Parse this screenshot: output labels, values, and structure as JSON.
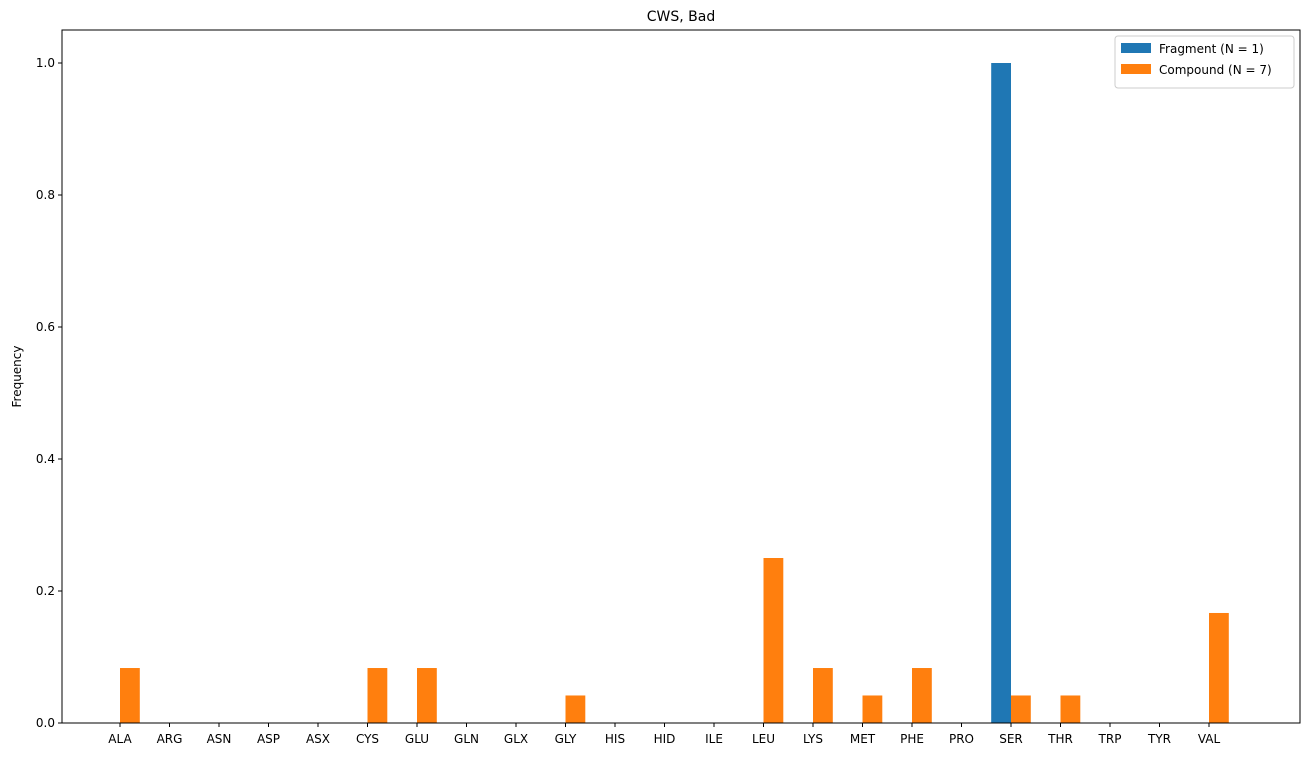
{
  "chart_data": {
    "type": "bar",
    "title": "CWS, Bad",
    "xlabel": "",
    "ylabel": "Frequency",
    "ylim": [
      0,
      1.05
    ],
    "yticks": [
      0.0,
      0.2,
      0.4,
      0.6,
      0.8,
      1.0
    ],
    "ytick_labels": [
      "0.0",
      "0.2",
      "0.4",
      "0.6",
      "0.8",
      "1.0"
    ],
    "categories": [
      "ALA",
      "ARG",
      "ASN",
      "ASP",
      "ASX",
      "CYS",
      "GLU",
      "GLN",
      "GLX",
      "GLY",
      "HIS",
      "HID",
      "ILE",
      "LEU",
      "LYS",
      "MET",
      "PHE",
      "PRO",
      "SER",
      "THR",
      "TRP",
      "TYR",
      "VAL"
    ],
    "series": [
      {
        "name": "Fragment (N = 1)",
        "color": "#1f77b4",
        "values": [
          0,
          0,
          0,
          0,
          0,
          0,
          0,
          0,
          0,
          0,
          0,
          0,
          0,
          0,
          0,
          0,
          0,
          0,
          1.0,
          0,
          0,
          0,
          0
        ]
      },
      {
        "name": "Compound (N = 7)",
        "color": "#ff7f0e",
        "values": [
          0.0833,
          0,
          0,
          0,
          0,
          0.0833,
          0.0833,
          0,
          0,
          0.0417,
          0,
          0,
          0,
          0.25,
          0.0833,
          0.0417,
          0.0833,
          0,
          0.0417,
          0.0417,
          0,
          0,
          0.1667
        ]
      }
    ],
    "legend_position": "top-right",
    "grid": false
  }
}
